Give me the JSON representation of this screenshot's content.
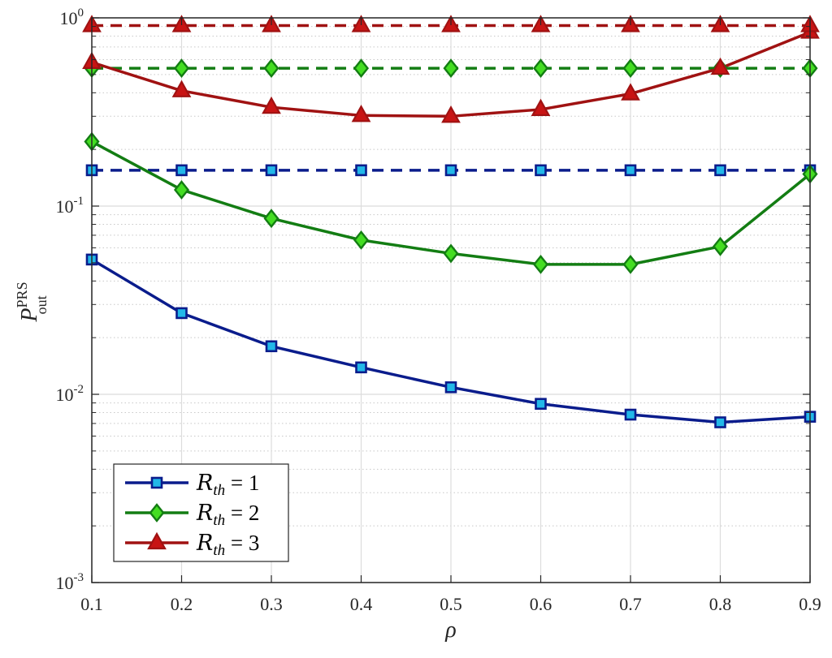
{
  "chart_data": {
    "type": "line",
    "yscale": "log",
    "xlabel": "ρ",
    "ylabel": {
      "main": "P",
      "sup": "PRS",
      "sub": "out"
    },
    "xlim": [
      0.1,
      0.9
    ],
    "ylim": [
      0.001,
      1
    ],
    "grid": true,
    "legend_position": "bottom-left",
    "x": [
      0.1,
      0.2,
      0.3,
      0.4,
      0.5,
      0.6,
      0.7,
      0.8,
      0.9
    ],
    "x_ticks": [
      "0.1",
      "0.2",
      "0.3",
      "0.4",
      "0.5",
      "0.6",
      "0.7",
      "0.8",
      "0.9"
    ],
    "y_ticks": [
      {
        "base": "10",
        "exp": "-3",
        "value": 0.001
      },
      {
        "base": "10",
        "exp": "-2",
        "value": 0.01
      },
      {
        "base": "10",
        "exp": "-1",
        "value": 0.1
      },
      {
        "base": "10",
        "exp": "0",
        "value": 1
      }
    ],
    "series": [
      {
        "name": "R_th = 1",
        "legend_parts": [
          "R",
          "th",
          " = 1"
        ],
        "color": "#0a1c8c",
        "marker": "square",
        "marker_fill": "#22b8e8",
        "values": [
          0.052,
          0.027,
          0.018,
          0.0139,
          0.0109,
          0.0089,
          0.0078,
          0.0071,
          0.0076
        ],
        "dashed_value": 0.155
      },
      {
        "name": "R_th = 2",
        "legend_parts": [
          "R",
          "th",
          " = 2"
        ],
        "color": "#137d13",
        "marker": "diamond",
        "marker_fill": "#44dd22",
        "values": [
          0.22,
          0.122,
          0.086,
          0.066,
          0.056,
          0.049,
          0.049,
          0.061,
          0.148
        ],
        "dashed_value": 0.54
      },
      {
        "name": "R_th = 3",
        "legend_parts": [
          "R",
          "th",
          " = 3"
        ],
        "color": "#a01212",
        "marker": "triangle",
        "marker_fill": "#c81414",
        "values": [
          0.58,
          0.41,
          0.335,
          0.303,
          0.3,
          0.326,
          0.395,
          0.54,
          0.84
        ],
        "dashed_value": 0.91
      }
    ]
  }
}
